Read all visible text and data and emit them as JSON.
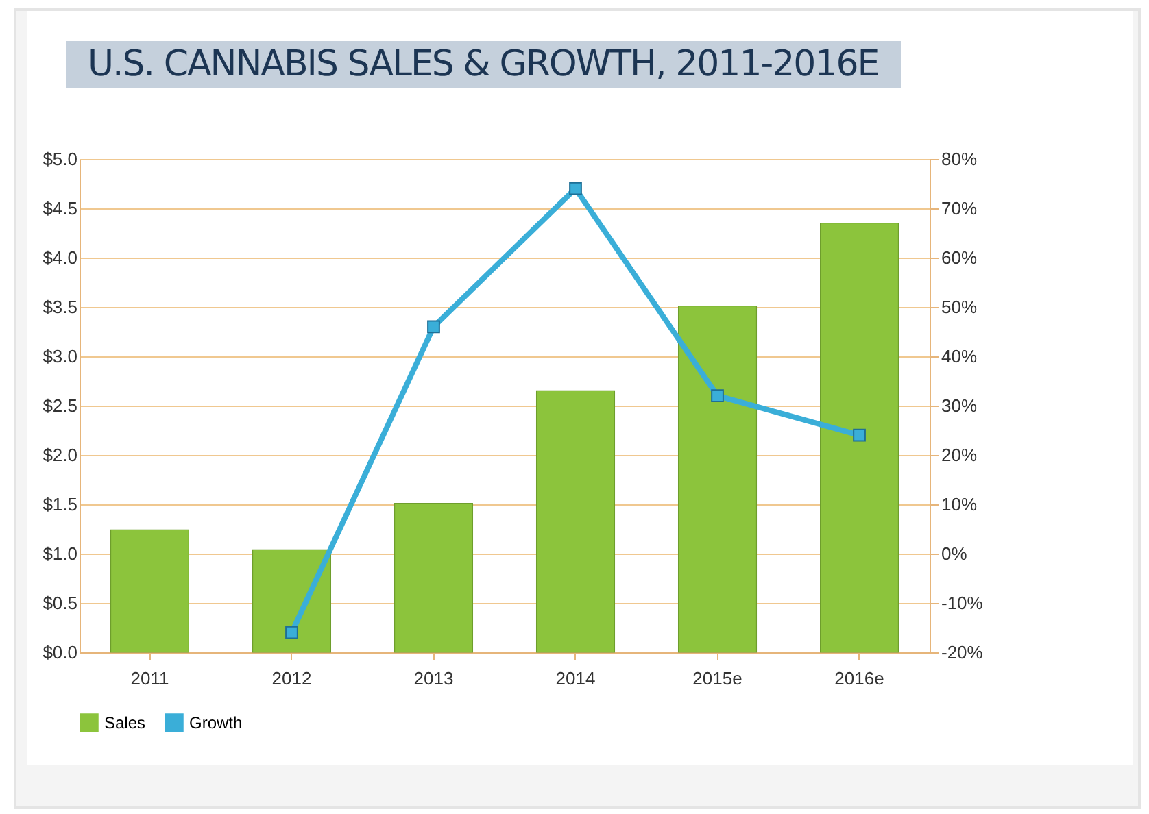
{
  "chart_data": {
    "type": "bar",
    "title": "U.S. CANNABIS SALES & GROWTH, 2011-2016E",
    "categories": [
      "2011",
      "2012",
      "2013",
      "2014",
      "2015e",
      "2016e"
    ],
    "series": [
      {
        "name": "Sales",
        "color": "#8cc43c",
        "values": [
          1.24,
          1.04,
          1.51,
          2.65,
          3.51,
          4.35
        ]
      },
      {
        "name": "Growth",
        "type": "line",
        "axis": "y2",
        "color": "#3aaed8",
        "marker": "square",
        "values": [
          null,
          -16,
          46,
          74,
          32,
          24
        ]
      }
    ],
    "ylim": [
      0,
      5
    ],
    "yticks": [
      {
        "value": 0,
        "label": "$0.0"
      },
      {
        "value": 0.5,
        "label": "$0.5"
      },
      {
        "value": 1,
        "label": "$1.0"
      },
      {
        "value": 1.5,
        "label": "$1.5"
      },
      {
        "value": 2,
        "label": "$2.0"
      },
      {
        "value": 2.5,
        "label": "$2.5"
      },
      {
        "value": 3,
        "label": "$3.0"
      },
      {
        "value": 3.5,
        "label": "$3.5"
      },
      {
        "value": 4,
        "label": "$4.0"
      },
      {
        "value": 4.5,
        "label": "$4.5"
      },
      {
        "value": 5,
        "label": "$5.0"
      }
    ],
    "y2lim": [
      -20,
      80
    ],
    "y2ticks": [
      {
        "value": -20,
        "label": "-20%"
      },
      {
        "value": -10,
        "label": "-10%"
      },
      {
        "value": 0,
        "label": "0%"
      },
      {
        "value": 10,
        "label": "10%"
      },
      {
        "value": 20,
        "label": "20%"
      },
      {
        "value": 30,
        "label": "30%"
      },
      {
        "value": 40,
        "label": "40%"
      },
      {
        "value": 50,
        "label": "50%"
      },
      {
        "value": 60,
        "label": "60%"
      },
      {
        "value": 70,
        "label": "70%"
      },
      {
        "value": 80,
        "label": "80%"
      }
    ],
    "grid": "y",
    "legend": "bottom"
  }
}
